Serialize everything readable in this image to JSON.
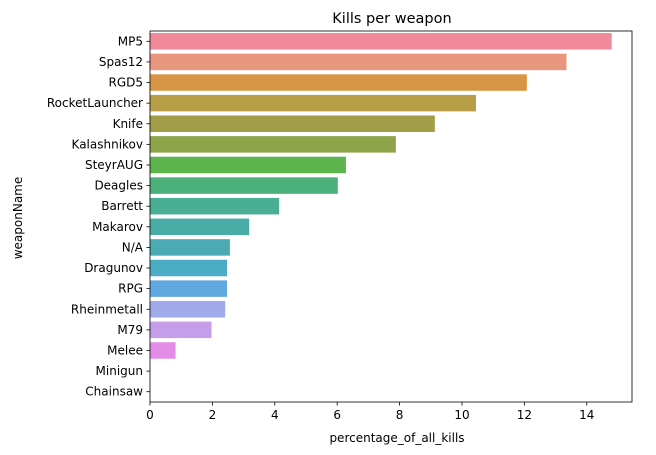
{
  "chart_data": {
    "type": "bar",
    "orientation": "horizontal",
    "title": "Kills per weapon",
    "xlabel": "percentage_of_all_kills",
    "ylabel": "weaponName",
    "xlim": [
      0,
      15.45
    ],
    "xticks": [
      0,
      2,
      4,
      6,
      8,
      10,
      12,
      14
    ],
    "grid": false,
    "legend": "none",
    "categories": [
      "MP5",
      "Spas12",
      "RGD5",
      "RocketLauncher",
      "Knife",
      "Kalashnikov",
      "SteyrAUG",
      "Deagles",
      "Barrett",
      "Makarov",
      "N/A",
      "Dragunov",
      "RPG",
      "Rheinmetall",
      "M79",
      "Melee",
      "Minigun",
      "Chainsaw"
    ],
    "values": [
      14.8,
      13.35,
      12.08,
      10.45,
      9.13,
      7.88,
      6.28,
      6.02,
      4.14,
      3.18,
      2.56,
      2.47,
      2.47,
      2.41,
      1.97,
      0.82,
      0.0,
      0.0
    ],
    "colors": [
      "#F08A9A",
      "#E8967E",
      "#D69645",
      "#B99E48",
      "#A29E48",
      "#8DA548",
      "#5EB44C",
      "#4CB17B",
      "#49AE94",
      "#49ACA6",
      "#4BABB4",
      "#4CACC6",
      "#5FA9E0",
      "#A0A9EA",
      "#C59DE9",
      "#E38DE6",
      "#EE87D4",
      "#F08CC2"
    ]
  }
}
